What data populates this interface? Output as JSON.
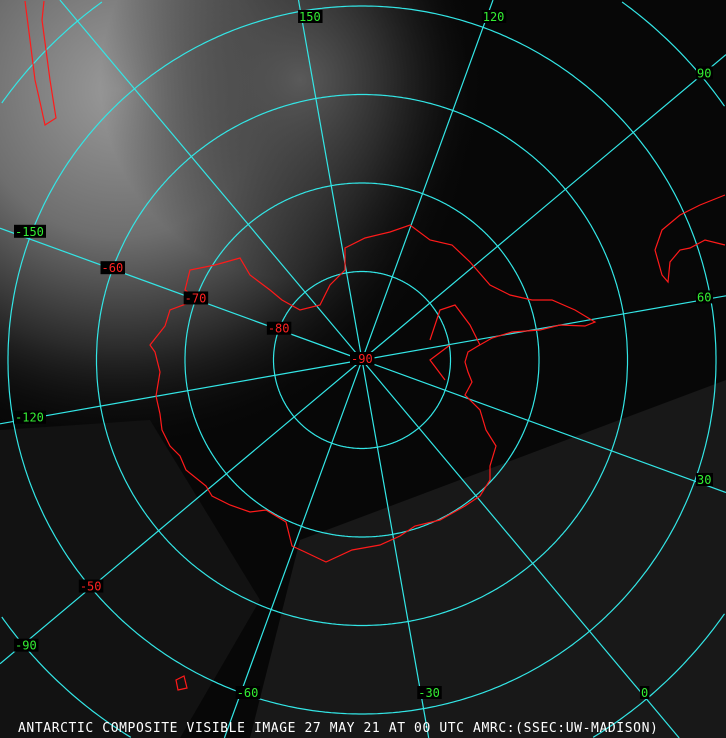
{
  "map": {
    "caption": "ANTARCTIC COMPOSITE VISIBLE IMAGE 27 MAY 21 AT 00 UTC AMRC:(SSEC:UW-MADISON)",
    "projection": "south polar stereographic",
    "colors": {
      "grid": "#33e6e6",
      "coastline": "#ff1a1a",
      "longitude_labels": "#33ee33",
      "latitude_labels": "#ff2222",
      "caption": "#ffffff"
    },
    "longitude_labels": [
      {
        "lon": 150,
        "text": "150"
      },
      {
        "lon": 120,
        "text": "120"
      },
      {
        "lon": 90,
        "text": "90"
      },
      {
        "lon": 60,
        "text": "60"
      },
      {
        "lon": 30,
        "text": "30"
      },
      {
        "lon": 0,
        "text": "0"
      },
      {
        "lon": -30,
        "text": "-30"
      },
      {
        "lon": -60,
        "text": "-60"
      },
      {
        "lon": -90,
        "text": "-90"
      },
      {
        "lon": -120,
        "text": "-120"
      },
      {
        "lon": -150,
        "text": "-150"
      }
    ],
    "latitude_labels": [
      {
        "lat": -50,
        "text": "-50"
      },
      {
        "lat": -60,
        "text": "-60"
      },
      {
        "lat": -70,
        "text": "-70"
      },
      {
        "lat": -80,
        "text": "-80"
      },
      {
        "lat": -90,
        "text": "-90"
      }
    ],
    "latitude_circles": [
      -80,
      -70,
      -60,
      -50,
      -40
    ],
    "meridian_spacing_deg": 30
  }
}
